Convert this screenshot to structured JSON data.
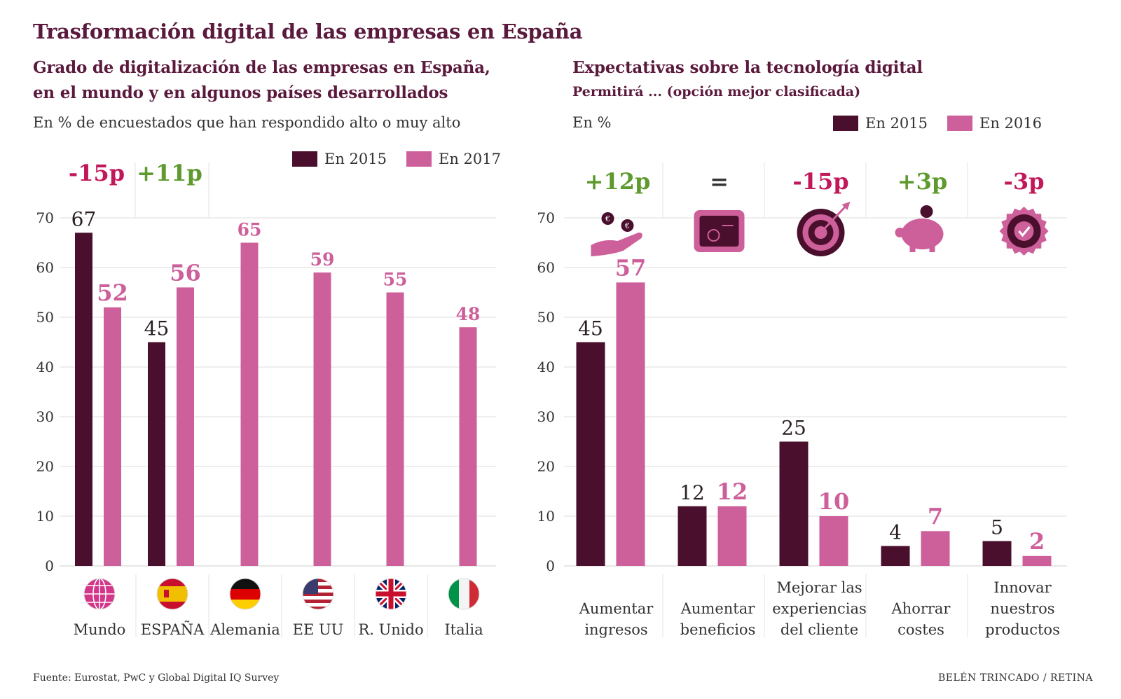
{
  "title": "Trasformación digital de las empresas en España",
  "footer": {
    "source": "Fuente:  Eurostat, PwC y Global Digital IQ Survey",
    "credit": "BELÉN TRINCADO / RETINA"
  },
  "colors": {
    "dark": "#4a0f2c",
    "pink": "#cd5f9a",
    "delta_neg": "#c2185b",
    "delta_pos": "#5e9a2e",
    "grid": "#dddddd"
  },
  "left_panel": {
    "title_line1": "Grado de digitalización de las empresas en España,",
    "title_line2": "en el mundo y en algunos países desarrollados",
    "subtitle": "En % de encuestados que han respondido alto o muy alto",
    "legend": [
      "En 2015",
      "En 2017"
    ]
  },
  "right_panel": {
    "title": "Expectativas sobre la tecnología digital",
    "subtitle": "Permitirá ... (opción mejor clasificada)",
    "unit": "En %",
    "legend": [
      "En 2015",
      "En 2016"
    ]
  },
  "chart_data": [
    {
      "type": "bar",
      "title": "Grado de digitalización de las empresas en España, en el mundo y en algunos países desarrollados",
      "ylim": [
        0,
        70
      ],
      "yticks": [
        0,
        10,
        20,
        30,
        40,
        50,
        60,
        70
      ],
      "grid": true,
      "legend_position": "top-right",
      "categories": [
        "Mundo",
        "ESPAÑA",
        "Alemania",
        "EE UU",
        "R. Unido",
        "Italia"
      ],
      "category_icons": [
        "globe-icon",
        "spain-flag-icon",
        "germany-flag-icon",
        "usa-flag-icon",
        "uk-flag-icon",
        "italy-flag-icon"
      ],
      "series": [
        {
          "name": "En 2015",
          "values": [
            67,
            45,
            null,
            null,
            null,
            null
          ]
        },
        {
          "name": "En 2017",
          "values": [
            52,
            56,
            65,
            59,
            55,
            48
          ]
        }
      ],
      "annotations": [
        {
          "category": "Mundo",
          "text": "-15p",
          "kind": "negative"
        },
        {
          "category": "ESPAÑA",
          "text": "+11p",
          "kind": "positive"
        }
      ]
    },
    {
      "type": "bar",
      "title": "Expectativas sobre la tecnología digital",
      "ylim": [
        0,
        70
      ],
      "yticks": [
        0,
        10,
        20,
        30,
        40,
        50,
        60,
        70
      ],
      "grid": true,
      "legend_position": "top-right",
      "categories": [
        [
          "Aumentar",
          "ingresos"
        ],
        [
          "Aumentar",
          "beneficios"
        ],
        [
          "Mejorar las",
          "experiencias",
          "del cliente"
        ],
        [
          "Ahorrar",
          "costes"
        ],
        [
          "Innovar",
          "nuestros",
          "productos"
        ]
      ],
      "category_icons": [
        "hand-coins-icon",
        "safe-icon",
        "target-icon",
        "piggy-bank-icon",
        "badge-check-icon"
      ],
      "series": [
        {
          "name": "En 2015",
          "values": [
            45,
            12,
            25,
            4,
            5
          ]
        },
        {
          "name": "En 2016",
          "values": [
            57,
            12,
            10,
            7,
            2
          ]
        }
      ],
      "annotations": [
        {
          "category": 0,
          "text": "+12p",
          "kind": "positive"
        },
        {
          "category": 1,
          "text": "=",
          "kind": "neutral"
        },
        {
          "category": 2,
          "text": "-15p",
          "kind": "negative"
        },
        {
          "category": 3,
          "text": "+3p",
          "kind": "positive"
        },
        {
          "category": 4,
          "text": "-3p",
          "kind": "negative"
        }
      ]
    }
  ]
}
